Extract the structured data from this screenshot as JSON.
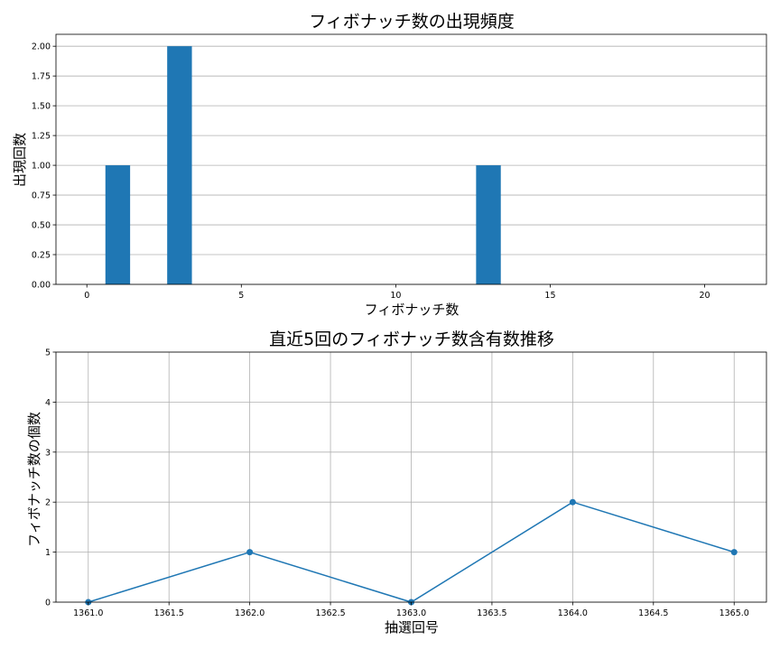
{
  "chart_data": [
    {
      "type": "bar",
      "title": "フィボナッチ数の出現頻度",
      "xlabel": "フィボナッチ数",
      "ylabel": "出現回数",
      "xlim": [
        -1,
        22
      ],
      "ylim": [
        0,
        2.1
      ],
      "xticks": [
        0,
        5,
        10,
        15,
        20
      ],
      "yticks": [
        0.0,
        0.25,
        0.5,
        0.75,
        1.0,
        1.25,
        1.5,
        1.75,
        2.0
      ],
      "ytick_labels": [
        "0.00",
        "0.25",
        "0.50",
        "0.75",
        "1.00",
        "1.25",
        "1.50",
        "1.75",
        "2.00"
      ],
      "grid": "y",
      "bar_width": 0.8,
      "bars": [
        {
          "x": 1,
          "value": 1
        },
        {
          "x": 3,
          "value": 2
        },
        {
          "x": 13,
          "value": 1
        }
      ],
      "color": "#1f77b4"
    },
    {
      "type": "line",
      "title": "直近5回のフィボナッチ数含有数推移",
      "xlabel": "抽選回号",
      "ylabel": "フィボナッチ数の個数",
      "xlim": [
        1360.8,
        1365.2
      ],
      "ylim": [
        0,
        5
      ],
      "xticks": [
        1361.0,
        1361.5,
        1362.0,
        1362.5,
        1363.0,
        1363.5,
        1364.0,
        1364.5,
        1365.0
      ],
      "xtick_labels": [
        "1361.0",
        "1361.5",
        "1362.0",
        "1362.5",
        "1363.0",
        "1363.5",
        "1364.0",
        "1364.5",
        "1365.0"
      ],
      "yticks": [
        0,
        1,
        2,
        3,
        4,
        5
      ],
      "ytick_labels": [
        "0",
        "1",
        "2",
        "3",
        "4",
        "5"
      ],
      "grid": "both",
      "x": [
        1361,
        1362,
        1363,
        1364,
        1365
      ],
      "y": [
        0,
        1,
        0,
        2,
        1
      ],
      "color": "#1f77b4"
    }
  ]
}
